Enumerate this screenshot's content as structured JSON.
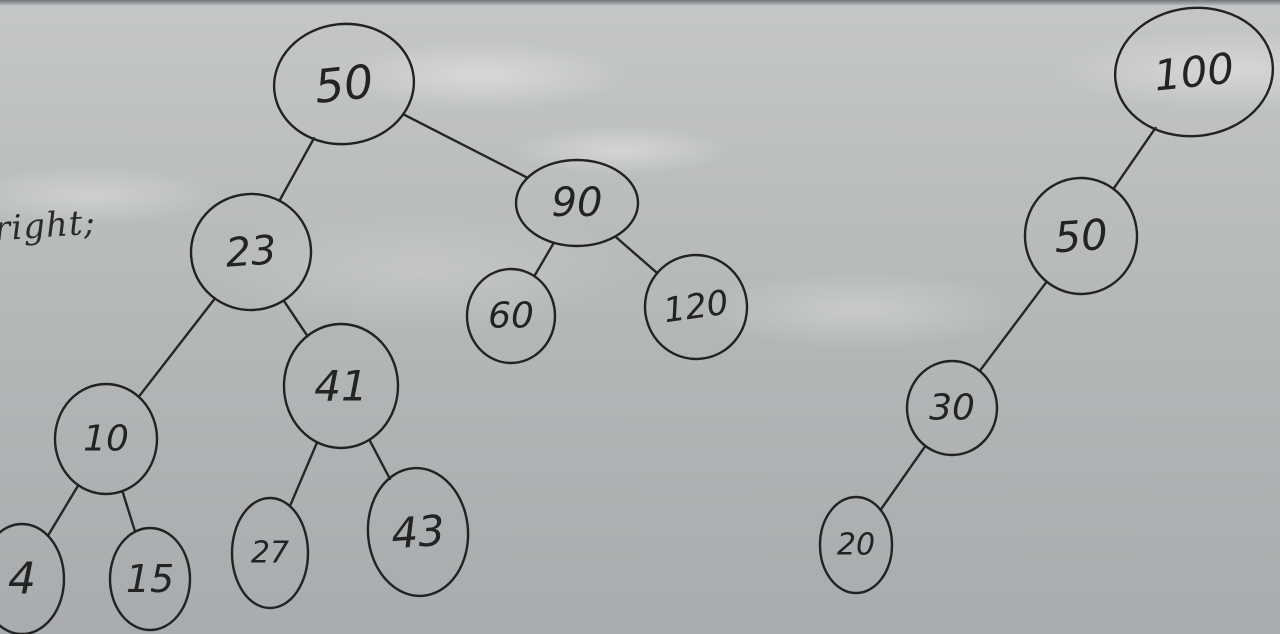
{
  "colors": {
    "board": "#b9bcbd",
    "ink": "#232323"
  },
  "fragment_text": "right;",
  "trees": [
    {
      "id": "left-tree",
      "nodes": [
        {
          "id": "n50a",
          "label": "50",
          "parent": null
        },
        {
          "id": "n23",
          "label": "23",
          "parent": "n50a"
        },
        {
          "id": "n90",
          "label": "90",
          "parent": "n50a"
        },
        {
          "id": "n60",
          "label": "60",
          "parent": "n90"
        },
        {
          "id": "n120a",
          "label": "120",
          "parent": "n90"
        },
        {
          "id": "n10",
          "label": "10",
          "parent": "n23"
        },
        {
          "id": "n41",
          "label": "41",
          "parent": "n23"
        },
        {
          "id": "n4",
          "label": "4",
          "parent": "n10"
        },
        {
          "id": "n15",
          "label": "15",
          "parent": "n10"
        },
        {
          "id": "n27",
          "label": "27",
          "parent": "n41"
        },
        {
          "id": "n43",
          "label": "43",
          "parent": "n41"
        }
      ]
    },
    {
      "id": "right-tree",
      "nodes": [
        {
          "id": "n100",
          "label": "100",
          "parent": null
        },
        {
          "id": "n50b",
          "label": "50",
          "parent": "n100"
        },
        {
          "id": "n30",
          "label": "30",
          "parent": "n50b"
        },
        {
          "id": "n20",
          "label": "20",
          "parent": "n30"
        }
      ]
    }
  ]
}
